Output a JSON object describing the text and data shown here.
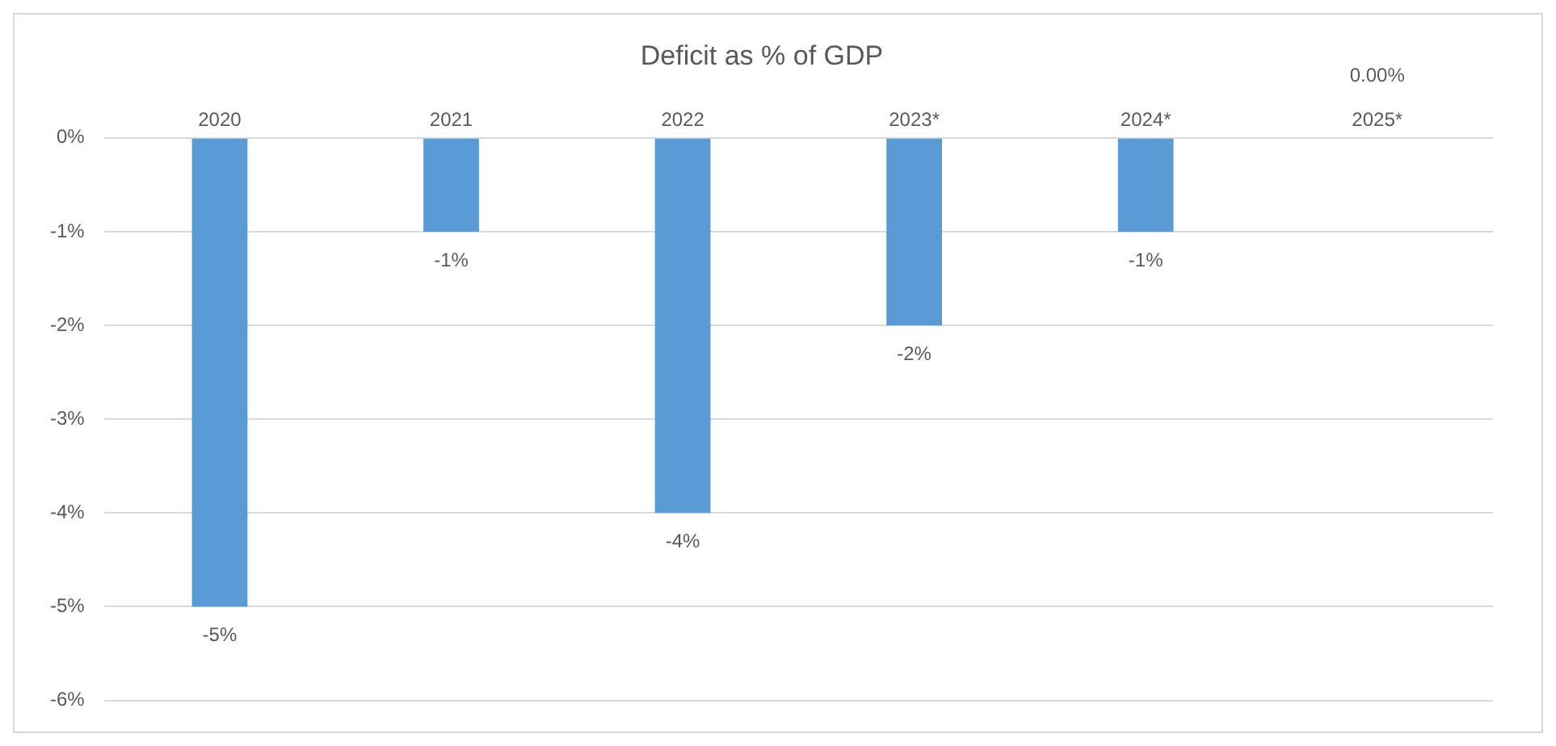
{
  "chart_data": {
    "type": "bar",
    "title": "Deficit as % of GDP",
    "categories": [
      "2020",
      "2021",
      "2022",
      "2023*",
      "2024*",
      "2025*"
    ],
    "values": [
      -5,
      -1,
      -4,
      -2,
      -1,
      0
    ],
    "value_labels": [
      "-5%",
      "-1%",
      "-4%",
      "-2%",
      "-1%",
      "0.00%"
    ],
    "color": "#5b9bd5",
    "ylim": [
      -6,
      0
    ],
    "yticks": [
      {
        "value": 0,
        "label": "0%"
      },
      {
        "value": -1,
        "label": "-1%"
      },
      {
        "value": -2,
        "label": "-2%"
      },
      {
        "value": -3,
        "label": "-3%"
      },
      {
        "value": -4,
        "label": "-4%"
      },
      {
        "value": -5,
        "label": "-5%"
      },
      {
        "value": -6,
        "label": "-6%"
      }
    ],
    "grid": "y",
    "legend": false
  }
}
